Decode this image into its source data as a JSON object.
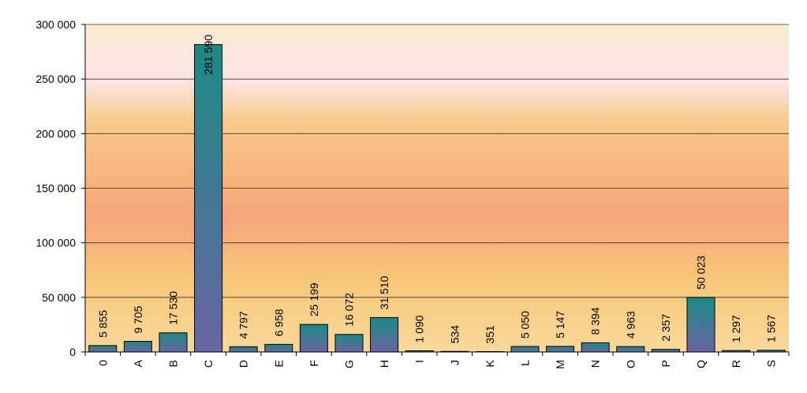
{
  "chart_data": {
    "type": "bar",
    "categories": [
      "0",
      "A",
      "B",
      "C",
      "D",
      "E",
      "F",
      "G",
      "H",
      "I",
      "J",
      "K",
      "L",
      "M",
      "N",
      "O",
      "P",
      "Q",
      "R",
      "S"
    ],
    "values": [
      5855,
      9705,
      17530,
      281590,
      4797,
      6958,
      25199,
      16072,
      31510,
      1090,
      534,
      351,
      5050,
      5147,
      8394,
      4963,
      2357,
      50023,
      1297,
      1567
    ],
    "value_labels": [
      "5 855",
      "9 705",
      "17 530",
      "281 590",
      "4 797",
      "6 958",
      "25 199",
      "16 072",
      "31 510",
      "1 090",
      "534",
      "351",
      "5 050",
      "5 147",
      "8 394",
      "4 963",
      "2 357",
      "50 023",
      "1 297",
      "1 567"
    ],
    "y_ticks": [
      0,
      50000,
      100000,
      150000,
      200000,
      250000,
      300000
    ],
    "y_tick_labels": [
      "0",
      "50 000",
      "100 000",
      "150 000",
      "200 000",
      "250 000",
      "300 000"
    ],
    "ylim": [
      0,
      300000
    ],
    "grid": true,
    "legend": "none",
    "colors": {
      "bar_top": "#1b8a84",
      "bar_bottom": "#6a64a3",
      "bar_stroke": "#000000",
      "bg_cream": "#faeccc",
      "bg_pink": "#fbe6e4",
      "bg_orange": "#f6a57c",
      "bg_amber": "#f8c778",
      "gridline": "#333333"
    }
  }
}
